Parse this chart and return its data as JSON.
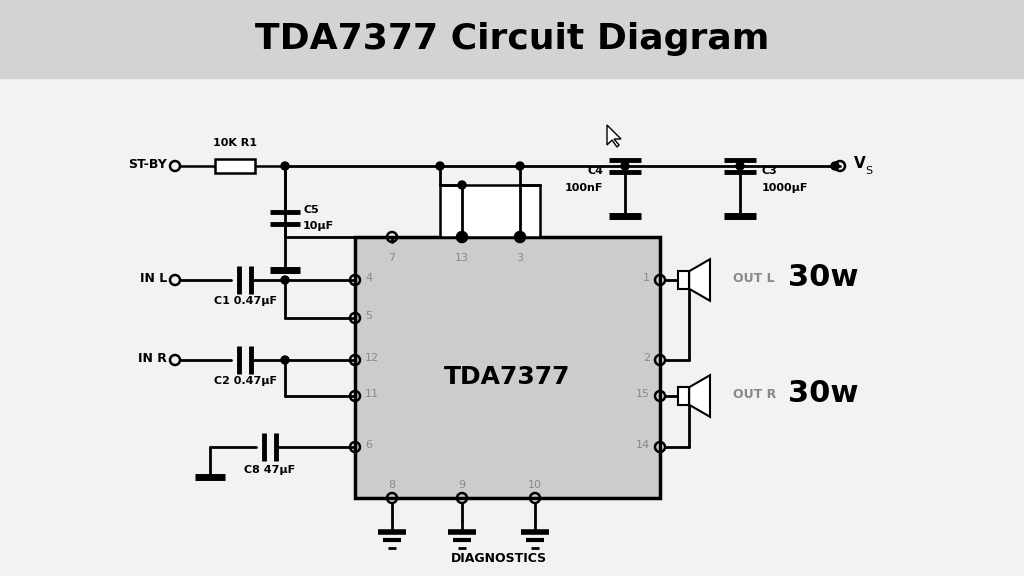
{
  "title": "TDA7377 Circuit Diagram",
  "title_fontsize": 26,
  "title_bg": "#d3d3d3",
  "bg_color": "#f2f2f2",
  "ic_label": "TDA7377",
  "ic_facecolor": "#cccccc",
  "component_labels": {
    "R1": "10K R1",
    "C5_line1": "C5",
    "C5_line2": "10μF",
    "C4_line1": "C4",
    "C4_line2": "100nF",
    "C3_line1": "C3",
    "C3_line2": "1000μF",
    "C1": "C1 0.47μF",
    "C2": "C2 0.47μF",
    "C8": "C8 47μF",
    "VS": "V",
    "VS_sub": "S",
    "STBY": "ST-BY",
    "INL": "IN L",
    "INR": "IN R",
    "OUTL": "OUT L",
    "OUTR": "OUT R",
    "OUTL_W": "30w",
    "OUTR_W": "30w",
    "DIAG": "DIAGNOSTICS",
    "pin_color": "#888888"
  }
}
